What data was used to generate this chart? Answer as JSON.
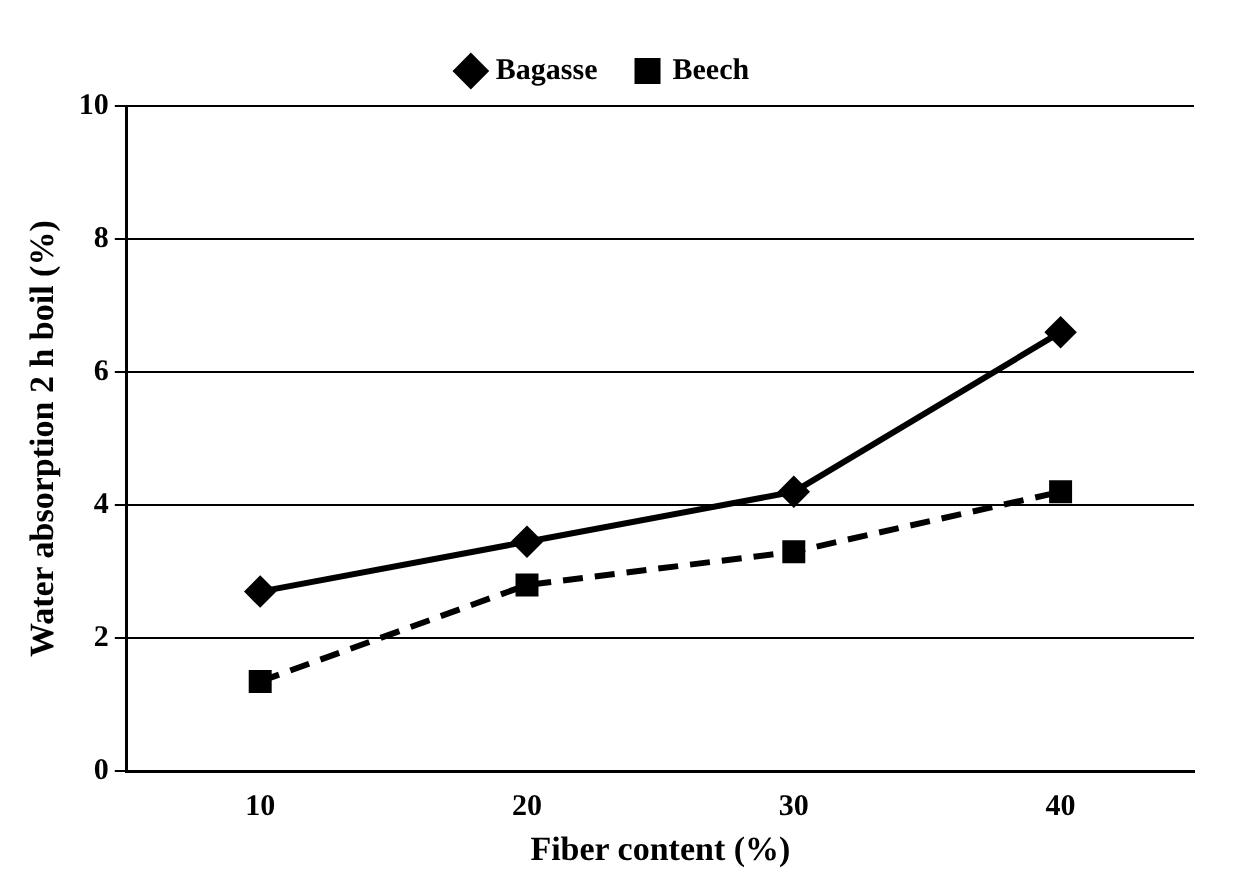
{
  "chart_data": {
    "type": "line",
    "xlabel": "Fiber content (%)",
    "ylabel": "Water absorption 2 h boil (%)",
    "categories": [
      "10",
      "20",
      "30",
      "40"
    ],
    "series": [
      {
        "name": "Bagasse",
        "color": "#000000",
        "values": [
          2.7,
          3.45,
          4.2,
          6.6
        ],
        "marker": "diamond",
        "line_style": "solid"
      },
      {
        "name": "Beech",
        "color": "#000000",
        "values": [
          1.35,
          2.8,
          3.3,
          4.2
        ],
        "marker": "square",
        "line_style": "dashed"
      }
    ],
    "ylim": [
      0,
      10
    ],
    "yticks": [
      0,
      2,
      4,
      6,
      8,
      10
    ],
    "grid": "y",
    "legend": "top"
  }
}
